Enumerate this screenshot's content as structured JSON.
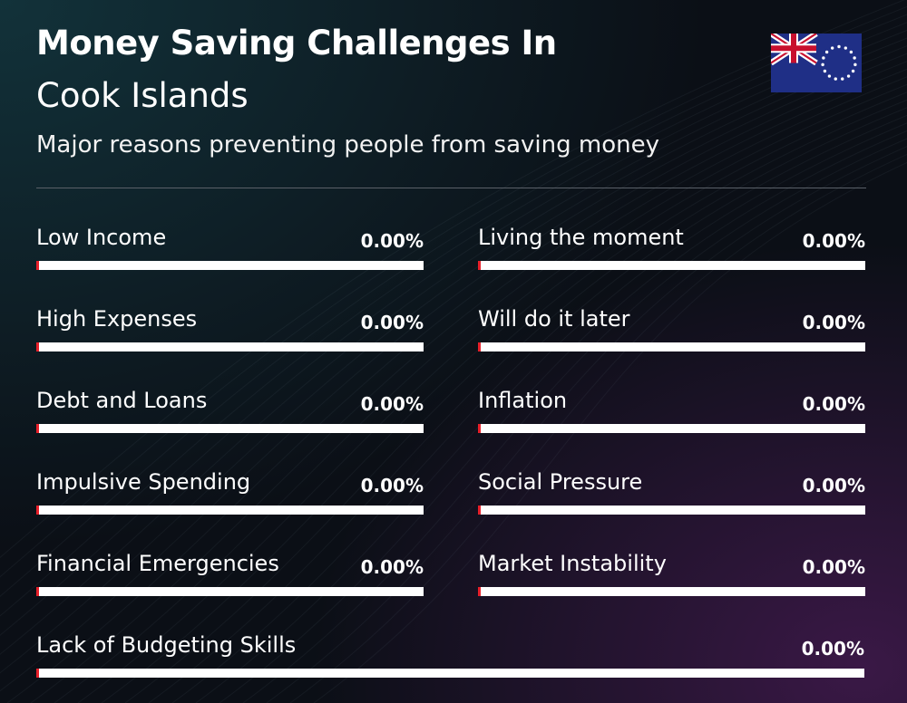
{
  "header": {
    "title_line1": "Money Saving Challenges In",
    "title_line2": "Cook Islands",
    "subtitle": "Major reasons preventing people from saving money",
    "flag_icon": "cook-islands-flag-icon"
  },
  "colors": {
    "bar_track": "#ffffff",
    "bar_fill": "#e8202a",
    "flag_blue": "#1f2f86",
    "flag_red": "#c8102e"
  },
  "chart_data": {
    "type": "bar",
    "title": "Money Saving Challenges In Cook Islands",
    "subtitle": "Major reasons preventing people from saving money",
    "ylim": [
      0,
      100
    ],
    "categories": [
      "Low Income",
      "Living the moment",
      "High Expenses",
      "Will do it later",
      "Debt and Loans",
      "Inflation",
      "Impulsive Spending",
      "Social Pressure",
      "Financial Emergencies",
      "Market Instability",
      "Lack of Budgeting Skills"
    ],
    "values": [
      0,
      0,
      0,
      0,
      0,
      0,
      0,
      0,
      0,
      0,
      0
    ],
    "value_labels": [
      "0.00%",
      "0.00%",
      "0.00%",
      "0.00%",
      "0.00%",
      "0.00%",
      "0.00%",
      "0.00%",
      "0.00%",
      "0.00%",
      "0.00%"
    ]
  }
}
